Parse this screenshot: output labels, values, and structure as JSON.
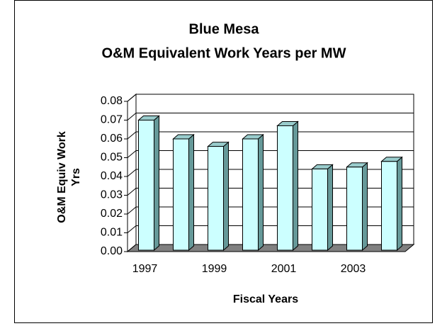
{
  "chart_data": {
    "type": "bar3d",
    "title": "Blue Mesa",
    "subtitle": "O&M Equivalent Work Years per MW",
    "xlabel": "Fiscal Years",
    "ylabel": [
      "O&M Equiv Work",
      "Yrs"
    ],
    "categories": [
      "1997",
      null,
      "1999",
      null,
      "2001",
      null,
      "2003",
      null
    ],
    "values": [
      0.07,
      0.06,
      0.056,
      0.06,
      0.067,
      0.044,
      0.045,
      0.048
    ],
    "color": "#ccffff",
    "ylim": [
      0,
      0.08
    ],
    "yticks": [
      {
        "value": 0,
        "label": "0.00"
      },
      0.01,
      0.02,
      0.03,
      0.04,
      0.05,
      0.06,
      0.07,
      0.08
    ],
    "grid": true
  }
}
